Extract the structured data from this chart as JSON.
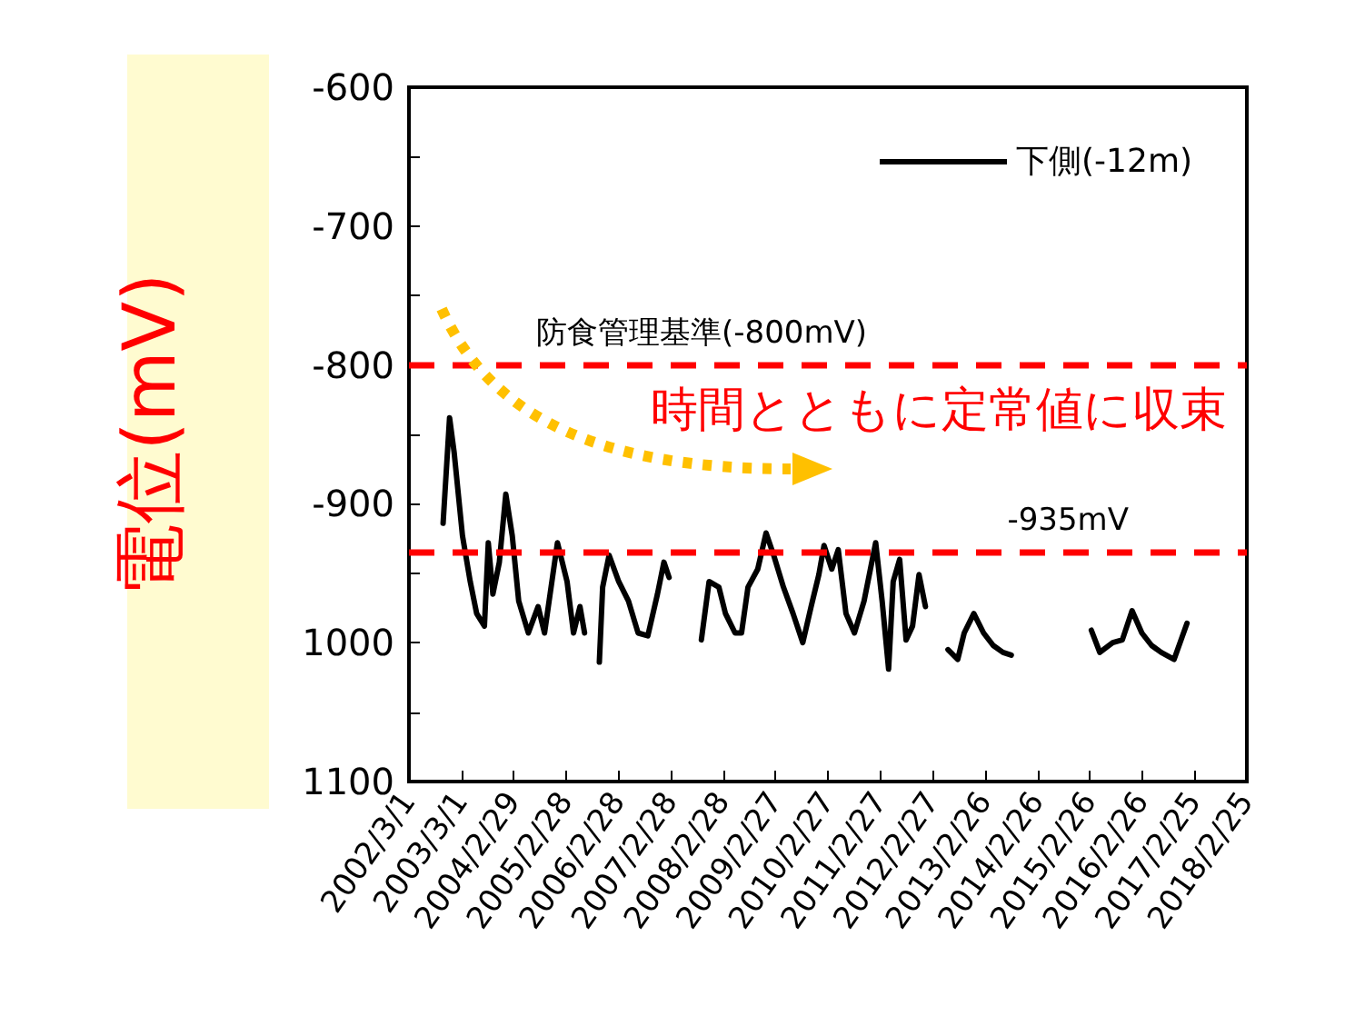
{
  "chart_data": {
    "type": "line",
    "ylabel": "電位(mV)",
    "annotations": [
      "時間とともに定常値に収束"
    ],
    "xlim": [
      "2002-03-01",
      "2018-02-25"
    ],
    "xticks": [
      {
        "value": "2002-03-01",
        "label": "2002/3/1"
      },
      {
        "value": "2003-03-01",
        "label": "2003/3/1"
      },
      {
        "value": "2004-02-29",
        "label": "2004/2/29"
      },
      {
        "value": "2005-02-28",
        "label": "2005/2/28"
      },
      {
        "value": "2006-02-28",
        "label": "2006/2/28"
      },
      {
        "value": "2007-02-28",
        "label": "2007/2/28"
      },
      {
        "value": "2008-02-28",
        "label": "2008/2/28"
      },
      {
        "value": "2009-02-27",
        "label": "2009/2/27"
      },
      {
        "value": "2010-02-27",
        "label": "2010/2/27"
      },
      {
        "value": "2011-02-27",
        "label": "2011/2/27"
      },
      {
        "value": "2012-02-27",
        "label": "2012/2/27"
      },
      {
        "value": "2013-02-26",
        "label": "2013/2/26"
      },
      {
        "value": "2014-02-26",
        "label": "2014/2/26"
      },
      {
        "value": "2015-02-26",
        "label": "2015/2/26"
      },
      {
        "value": "2016-02-26",
        "label": "2016/2/26"
      },
      {
        "value": "2017-02-25",
        "label": "2017/2/25"
      },
      {
        "value": "2018-02-25",
        "label": "2018/2/25"
      }
    ],
    "ylim": [
      -1100,
      -600
    ],
    "yticks": [
      -600,
      {
        "value": -650,
        "label": null
      },
      -700,
      {
        "value": -750,
        "label": null
      },
      -800,
      {
        "value": -850,
        "label": null
      },
      -900,
      {
        "value": -950,
        "label": null
      },
      {
        "value": -1000,
        "label": "1000"
      },
      {
        "value": -1050,
        "label": null
      },
      {
        "value": -1100,
        "label": "1100"
      }
    ],
    "grid": false,
    "legend": "top right",
    "marker": "none",
    "line_style": "solid",
    "ref_lines": [
      {
        "axis": "y",
        "value": -800,
        "label": "防食管理基準(-800mV)",
        "color": "#ff0000",
        "line_style": "dashed"
      },
      {
        "axis": "y",
        "value": -935,
        "label": "-935mV",
        "color": "#ff0000",
        "line_style": "dashed"
      }
    ],
    "series": [
      {
        "name": "下側(-12m)",
        "color": "#000000",
        "x": [
          "2002-10-25",
          "2002-12-09",
          "2003-01-10",
          "2003-03-09",
          "2003-05-02",
          "2003-06-16",
          "2003-08-09",
          "2003-09-05",
          "2003-10-07",
          "2003-11-21",
          "2004-01-05",
          "2004-02-19",
          "2004-04-04",
          "2004-06-10",
          "2004-08-17",
          "2004-10-01",
          "2004-12-30",
          "2005-03-07",
          "2005-04-21",
          "2005-06-05",
          "2005-07-07",
          "2005-09-01",
          "2005-10-18",
          "2005-11-10",
          "2005-12-25",
          "2006-03-02",
          "2006-05-09",
          "2006-07-15",
          "2006-09-21",
          "2006-11-27",
          "2007-01-11",
          "2007-02-16",
          "2007-06-01",
          "2007-09-29",
          "2007-11-22",
          "2008-01-29",
          "2008-03-15",
          "2008-05-21",
          "2008-07-05",
          "2008-08-19",
          "2008-10-26",
          "2008-12-23",
          "2009-02-14",
          "2009-04-23",
          "2009-06-29",
          "2009-09-05",
          "2009-11-02",
          "2009-12-26",
          "2010-01-31",
          "2010-03-26",
          "2010-05-10",
          "2010-07-03",
          "2010-08-31",
          "2010-11-06",
          "2011-01-26",
          "2011-03-12",
          "2011-04-26",
          "2011-05-28",
          "2011-07-12",
          "2011-08-26",
          "2011-10-10",
          "2011-11-24",
          "2012-01-08",
          "2012-03-15",
          "2012-06-13",
          "2012-08-20",
          "2012-10-04",
          "2012-12-10",
          "2013-02-16",
          "2013-04-24",
          "2013-07-01",
          "2013-08-28",
          "2014-06-01",
          "2015-03-09",
          "2015-05-07",
          "2015-08-05",
          "2015-10-11",
          "2015-12-18",
          "2016-02-24",
          "2016-05-02",
          "2016-07-08",
          "2016-10-06",
          "2017-01-04"
        ],
        "values": [
          -914,
          -838,
          -863,
          -923,
          -956,
          -979,
          -988,
          -928,
          -965,
          -942,
          -893,
          -923,
          -970,
          -993,
          -974,
          -993,
          -928,
          -956,
          -993,
          -974,
          -993,
          null,
          -1014,
          -960,
          -937,
          -956,
          -970,
          -993,
          -995,
          -965,
          -942,
          -953,
          null,
          -998,
          -956,
          -960,
          -979,
          -993,
          -993,
          -960,
          -947,
          -921,
          -937,
          -960,
          -979,
          -1000,
          -974,
          -951,
          -930,
          -947,
          -933,
          -979,
          -993,
          -970,
          -928,
          -970,
          -1019,
          -956,
          -940,
          -998,
          -988,
          -951,
          -974,
          null,
          -1005,
          -1012,
          -993,
          -979,
          -993,
          -1002,
          -1007,
          -1009,
          null,
          -991,
          -1007,
          -1000,
          -998,
          -977,
          -993,
          -1002,
          -1007,
          -1012,
          -986
        ]
      }
    ]
  }
}
